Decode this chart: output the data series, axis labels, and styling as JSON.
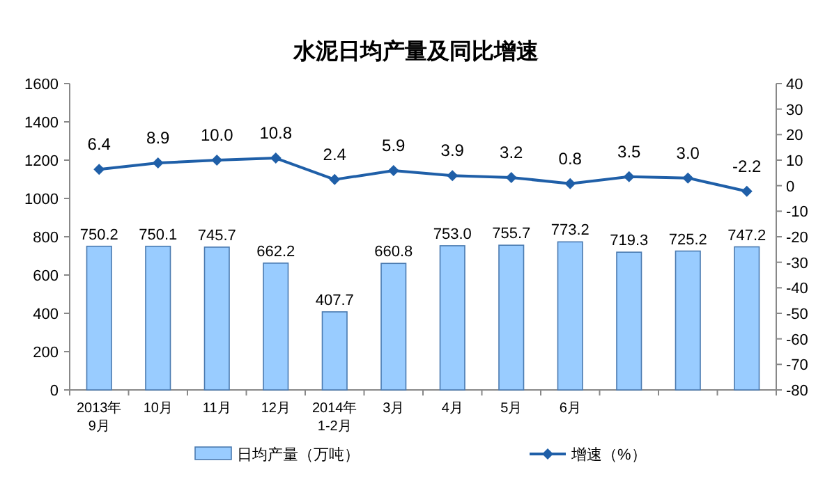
{
  "chart_data": {
    "type": "bar",
    "title": "水泥日均产量及同比增速",
    "categories": [
      "2013年\n9月",
      "10月",
      "11月",
      "12月",
      "2014年\n1-2月",
      "3月",
      "4月",
      "5月",
      "6月",
      null,
      null,
      null
    ],
    "series": [
      {
        "name": "日均产量（万吨）",
        "color": "#99ccff",
        "values": [
          750.2,
          750.1,
          745.7,
          662.2,
          407.7,
          660.8,
          753.0,
          755.7,
          773.2,
          719.3,
          725.2,
          747.2
        ],
        "value_labels": [
          "750.2",
          "750.1",
          "745.7",
          "662.2",
          "407.7",
          "660.8",
          "753.0",
          "755.7",
          "773.2",
          "719.3",
          "725.2",
          "747.2"
        ]
      },
      {
        "name": "增速（%）",
        "type": "line",
        "axis": "y2",
        "color": "#1f5fa8",
        "values": [
          6.4,
          8.9,
          10.0,
          10.8,
          2.4,
          5.9,
          3.9,
          3.2,
          0.8,
          3.5,
          3.0,
          -2.2
        ],
        "value_labels": [
          "6.4",
          "8.9",
          "10.0",
          "10.8",
          "2.4",
          "5.9",
          "3.9",
          "3.2",
          "0.8",
          "3.5",
          "3.0",
          "-2.2"
        ]
      }
    ],
    "ylim": [
      0,
      1600
    ],
    "yticks": [
      0,
      200,
      400,
      600,
      800,
      1000,
      1200,
      1400,
      1600
    ],
    "y2lim": [
      -80,
      40
    ],
    "y2ticks": [
      -80,
      -70,
      -60,
      -50,
      -40,
      -30,
      -20,
      -10,
      0,
      10,
      20,
      30,
      40
    ],
    "marker": "diamond",
    "legend": "bottom",
    "grid": false
  }
}
